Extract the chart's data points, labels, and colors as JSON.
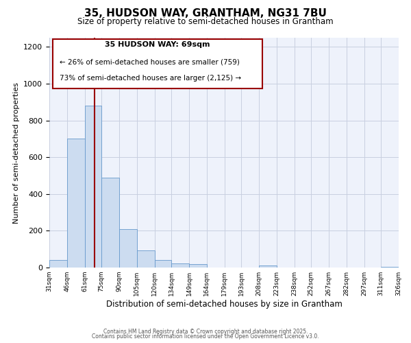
{
  "title": "35, HUDSON WAY, GRANTHAM, NG31 7BU",
  "subtitle": "Size of property relative to semi-detached houses in Grantham",
  "xlabel": "Distribution of semi-detached houses by size in Grantham",
  "ylabel": "Number of semi-detached properties",
  "bar_color": "#ccdcf0",
  "bar_edge_color": "#6699cc",
  "background_color": "#eef2fb",
  "grid_color": "#c8cfe0",
  "vline_x": 69,
  "vline_color": "#990000",
  "annotation_title": "35 HUDSON WAY: 69sqm",
  "annotation_line1": "← 26% of semi-detached houses are smaller (759)",
  "annotation_line2": "73% of semi-detached houses are larger (2,125) →",
  "annotation_box_edge": "#990000",
  "bin_edges": [
    31,
    46,
    61,
    75,
    90,
    105,
    120,
    134,
    149,
    164,
    179,
    193,
    208,
    223,
    238,
    252,
    267,
    282,
    297,
    311,
    326
  ],
  "bin_counts": [
    40,
    700,
    880,
    490,
    210,
    95,
    42,
    23,
    18,
    0,
    0,
    0,
    10,
    0,
    0,
    0,
    0,
    0,
    0,
    4
  ],
  "ylim": [
    0,
    1250
  ],
  "yticks": [
    0,
    200,
    400,
    600,
    800,
    1000,
    1200
  ],
  "footnote1": "Contains HM Land Registry data © Crown copyright and database right 2025.",
  "footnote2": "Contains public sector information licensed under the Open Government Licence v3.0."
}
